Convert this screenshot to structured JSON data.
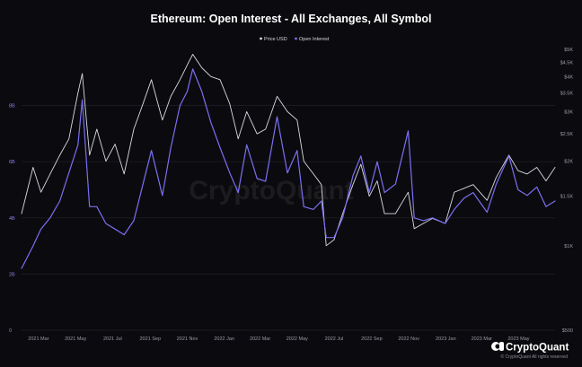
{
  "chart_data": {
    "type": "line",
    "title": "Ethereum: Open Interest - All Exchanges, All Symbol",
    "legend": [
      {
        "name": "Price USD",
        "color": "#d9d9e2"
      },
      {
        "name": "Open Interest",
        "color": "#7b6ff2"
      }
    ],
    "legend_position": "top-center",
    "watermark": "CryptoQuant",
    "brand": {
      "name": "CryptoQuant",
      "copyright": "© CryptoQuant All rights reserved"
    },
    "x_axis": {
      "ticks": [
        "2021 Mar",
        "2021 May",
        "2021 Jul",
        "2021 Sep",
        "2021 Nov",
        "2022 Jan",
        "2022 Mar",
        "2022 May",
        "2022 Jul",
        "2022 Sep",
        "2022 Nov",
        "2023 Jan",
        "2023 Mar",
        "2023 May"
      ],
      "range": [
        "2021-02-01",
        "2023-06-30"
      ]
    },
    "y_axis_left": {
      "label": "",
      "ticks": [
        "0",
        "2B",
        "4B",
        "6B",
        "8B"
      ],
      "tick_values": [
        0,
        2,
        4,
        6,
        8
      ],
      "range": [
        0,
        10
      ],
      "unit": "B"
    },
    "y_axis_right": {
      "label": "",
      "scale": "log",
      "ticks": [
        "$500",
        "$1K",
        "$1.5K",
        "$2K",
        "$2.5K",
        "$3K",
        "$3.5K",
        "$4K",
        "$4.5K",
        "$5K"
      ],
      "tick_values": [
        500,
        1000,
        1500,
        2000,
        2500,
        3000,
        3500,
        4000,
        4500,
        5000
      ],
      "range": [
        500,
        5000
      ]
    },
    "grid": true,
    "series": [
      {
        "name": "Price USD",
        "axis": "right",
        "color": "#d9d9e2",
        "points": [
          [
            "2021-02-01",
            1300
          ],
          [
            "2021-02-20",
            1900
          ],
          [
            "2021-03-05",
            1550
          ],
          [
            "2021-03-20",
            1800
          ],
          [
            "2021-04-05",
            2100
          ],
          [
            "2021-04-20",
            2400
          ],
          [
            "2021-05-05",
            3500
          ],
          [
            "2021-05-12",
            4100
          ],
          [
            "2021-05-24",
            2100
          ],
          [
            "2021-06-05",
            2600
          ],
          [
            "2021-06-20",
            2000
          ],
          [
            "2021-07-05",
            2300
          ],
          [
            "2021-07-20",
            1800
          ],
          [
            "2021-08-05",
            2600
          ],
          [
            "2021-08-20",
            3200
          ],
          [
            "2021-09-03",
            3900
          ],
          [
            "2021-09-21",
            2800
          ],
          [
            "2021-10-05",
            3400
          ],
          [
            "2021-10-20",
            3900
          ],
          [
            "2021-11-01",
            4400
          ],
          [
            "2021-11-10",
            4800
          ],
          [
            "2021-11-25",
            4300
          ],
          [
            "2021-12-10",
            4000
          ],
          [
            "2021-12-25",
            3900
          ],
          [
            "2022-01-10",
            3200
          ],
          [
            "2022-01-24",
            2400
          ],
          [
            "2022-02-07",
            3000
          ],
          [
            "2022-02-24",
            2500
          ],
          [
            "2022-03-10",
            2600
          ],
          [
            "2022-03-29",
            3400
          ],
          [
            "2022-04-15",
            3000
          ],
          [
            "2022-05-01",
            2800
          ],
          [
            "2022-05-12",
            2000
          ],
          [
            "2022-05-28",
            1800
          ],
          [
            "2022-06-10",
            1650
          ],
          [
            "2022-06-18",
            1000
          ],
          [
            "2022-07-01",
            1050
          ],
          [
            "2022-07-15",
            1300
          ],
          [
            "2022-08-01",
            1650
          ],
          [
            "2022-08-14",
            1950
          ],
          [
            "2022-08-28",
            1500
          ],
          [
            "2022-09-10",
            1700
          ],
          [
            "2022-09-22",
            1300
          ],
          [
            "2022-10-10",
            1300
          ],
          [
            "2022-10-31",
            1550
          ],
          [
            "2022-11-10",
            1150
          ],
          [
            "2022-11-25",
            1200
          ],
          [
            "2022-12-10",
            1250
          ],
          [
            "2022-12-31",
            1200
          ],
          [
            "2023-01-15",
            1550
          ],
          [
            "2023-01-31",
            1600
          ],
          [
            "2023-02-15",
            1650
          ],
          [
            "2023-03-10",
            1450
          ],
          [
            "2023-03-25",
            1750
          ],
          [
            "2023-04-15",
            2100
          ],
          [
            "2023-04-30",
            1850
          ],
          [
            "2023-05-15",
            1800
          ],
          [
            "2023-05-31",
            1900
          ],
          [
            "2023-06-15",
            1700
          ],
          [
            "2023-06-30",
            1900
          ]
        ]
      },
      {
        "name": "Open Interest",
        "axis": "left",
        "color": "#7b6ff2",
        "points": [
          [
            "2021-02-01",
            2.2
          ],
          [
            "2021-02-20",
            3.0
          ],
          [
            "2021-03-05",
            3.6
          ],
          [
            "2021-03-20",
            4.0
          ],
          [
            "2021-04-05",
            4.6
          ],
          [
            "2021-04-20",
            5.6
          ],
          [
            "2021-05-05",
            6.6
          ],
          [
            "2021-05-12",
            8.2
          ],
          [
            "2021-05-24",
            4.4
          ],
          [
            "2021-06-05",
            4.4
          ],
          [
            "2021-06-20",
            3.8
          ],
          [
            "2021-07-05",
            3.6
          ],
          [
            "2021-07-20",
            3.4
          ],
          [
            "2021-08-05",
            3.9
          ],
          [
            "2021-08-20",
            5.2
          ],
          [
            "2021-09-03",
            6.4
          ],
          [
            "2021-09-21",
            4.8
          ],
          [
            "2021-10-05",
            6.5
          ],
          [
            "2021-10-20",
            8.0
          ],
          [
            "2021-11-01",
            8.5
          ],
          [
            "2021-11-10",
            9.3
          ],
          [
            "2021-11-25",
            8.5
          ],
          [
            "2021-12-10",
            7.4
          ],
          [
            "2021-12-25",
            6.5
          ],
          [
            "2022-01-10",
            5.6
          ],
          [
            "2022-01-24",
            4.9
          ],
          [
            "2022-02-07",
            6.6
          ],
          [
            "2022-02-24",
            5.4
          ],
          [
            "2022-03-10",
            5.3
          ],
          [
            "2022-03-29",
            7.6
          ],
          [
            "2022-04-15",
            5.6
          ],
          [
            "2022-05-01",
            6.4
          ],
          [
            "2022-05-12",
            4.4
          ],
          [
            "2022-05-28",
            4.3
          ],
          [
            "2022-06-10",
            4.6
          ],
          [
            "2022-06-18",
            3.3
          ],
          [
            "2022-07-01",
            3.3
          ],
          [
            "2022-07-15",
            4.0
          ],
          [
            "2022-08-01",
            5.5
          ],
          [
            "2022-08-14",
            6.2
          ],
          [
            "2022-08-28",
            4.9
          ],
          [
            "2022-09-10",
            6.0
          ],
          [
            "2022-09-22",
            4.9
          ],
          [
            "2022-10-10",
            5.2
          ],
          [
            "2022-10-31",
            7.1
          ],
          [
            "2022-11-10",
            4.0
          ],
          [
            "2022-11-25",
            3.9
          ],
          [
            "2022-12-10",
            4.0
          ],
          [
            "2022-12-31",
            3.8
          ],
          [
            "2023-01-15",
            4.3
          ],
          [
            "2023-01-31",
            4.7
          ],
          [
            "2023-02-15",
            4.9
          ],
          [
            "2023-03-10",
            4.2
          ],
          [
            "2023-03-25",
            5.2
          ],
          [
            "2023-04-15",
            6.2
          ],
          [
            "2023-04-30",
            5.0
          ],
          [
            "2023-05-15",
            4.8
          ],
          [
            "2023-05-31",
            5.1
          ],
          [
            "2023-06-15",
            4.4
          ],
          [
            "2023-06-30",
            4.6
          ]
        ]
      }
    ]
  }
}
